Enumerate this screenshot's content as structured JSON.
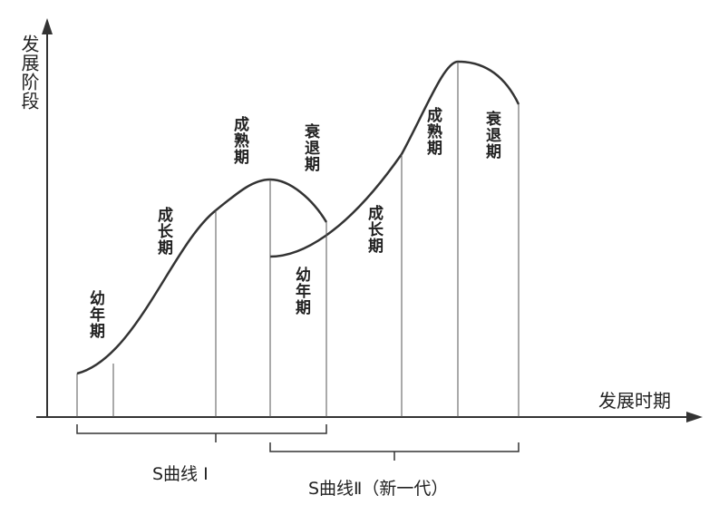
{
  "y_axis_label": "发展阶段",
  "x_axis_label": "发展时期",
  "curve_1": {
    "stages": [
      "幼年期",
      "成长期",
      "成熟期",
      "衰退期"
    ],
    "label": "S曲线 I"
  },
  "curve_2": {
    "stages": [
      "幼年期",
      "成长期",
      "成熟期",
      "衰退期"
    ],
    "label": "S曲线Ⅱ（新一代）"
  }
}
